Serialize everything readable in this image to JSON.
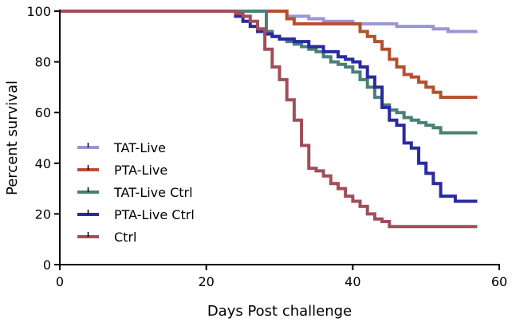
{
  "chart_data": {
    "type": "line",
    "subtype": "kaplan-meier step",
    "title": "",
    "xlabel": "Days Post challenge",
    "ylabel": "Percent survival",
    "xlim": [
      0,
      60
    ],
    "ylim": [
      0,
      100
    ],
    "xticks": [
      0,
      20,
      40,
      60
    ],
    "yticks": [
      0,
      20,
      40,
      60,
      80,
      100
    ],
    "grid": false,
    "legend_position": "bottom-left",
    "series": [
      {
        "name": "TAT-Live",
        "color": "#9a96d6",
        "x": [
          0,
          30,
          31,
          34,
          36,
          40,
          44,
          46,
          51,
          53,
          57
        ],
        "y": [
          100,
          100,
          98,
          97,
          96,
          95,
          95,
          94,
          93,
          92,
          92
        ]
      },
      {
        "name": "PTA-Live",
        "color": "#b5502f",
        "x": [
          0,
          30,
          31,
          32,
          40,
          41,
          42,
          43,
          44,
          45,
          46,
          47,
          48,
          49,
          50,
          51,
          52,
          57
        ],
        "y": [
          100,
          100,
          97,
          95,
          95,
          92,
          90,
          88,
          85,
          81,
          78,
          75,
          74,
          72,
          70,
          68,
          66,
          66
        ]
      },
      {
        "name": "TAT-Live Ctrl",
        "color": "#4a8076",
        "x": [
          0,
          28,
          28.2,
          29,
          30,
          31,
          32,
          33,
          34,
          35,
          36,
          37,
          38,
          39,
          40,
          41,
          42,
          43,
          44,
          45,
          46,
          47,
          48,
          49,
          50,
          51,
          52,
          57
        ],
        "y": [
          100,
          100,
          92,
          90,
          89,
          88,
          87,
          86,
          85,
          84,
          82,
          80,
          79,
          78,
          76,
          73,
          70,
          66,
          63,
          61,
          60,
          58,
          57,
          56,
          55,
          54,
          52,
          52
        ]
      },
      {
        "name": "PTA-Live Ctrl",
        "color": "#2a2aa0",
        "x": [
          0,
          23,
          24,
          25,
          26,
          27,
          28,
          29,
          30,
          32,
          34,
          36,
          38,
          39,
          40,
          41,
          42,
          43,
          44,
          45,
          46,
          47,
          48,
          49,
          50,
          51,
          52,
          54,
          57
        ],
        "y": [
          100,
          100,
          98,
          96,
          94,
          92,
          91,
          90,
          89,
          88,
          86,
          84,
          82,
          81,
          80,
          78,
          74,
          70,
          62,
          57,
          55,
          48,
          46,
          40,
          36,
          32,
          27,
          25,
          25
        ]
      },
      {
        "name": "Ctrl",
        "color": "#a04e5a",
        "x": [
          0,
          23,
          24,
          25,
          26,
          27,
          28,
          29,
          30,
          31,
          32,
          33,
          34,
          35,
          36,
          37,
          38,
          39,
          40,
          41,
          42,
          43,
          44,
          45,
          57
        ],
        "y": [
          100,
          100,
          99,
          98,
          96,
          93,
          85,
          78,
          73,
          65,
          57,
          47,
          38,
          37,
          35,
          32,
          30,
          27,
          25,
          23,
          20,
          18,
          17,
          15,
          15
        ]
      }
    ]
  }
}
